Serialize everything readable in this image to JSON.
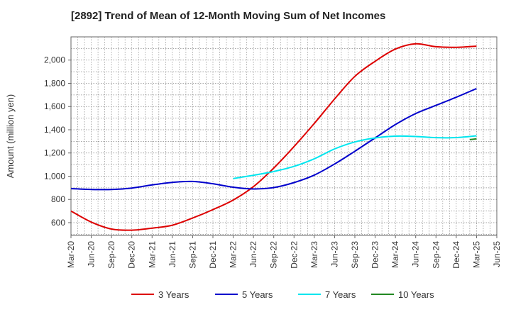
{
  "chart_data": {
    "type": "line",
    "title": "[2892]  Trend of Mean of 12-Month Moving Sum of Net Incomes",
    "ylabel": "Amount (million yen)",
    "xlabel": "",
    "grid": true,
    "legend_position": "bottom",
    "ylim": [
      490,
      2200
    ],
    "yticks": [
      600,
      800,
      1000,
      1200,
      1400,
      1600,
      1800,
      2000
    ],
    "ytick_labels": [
      "600",
      "800",
      "1,000",
      "1,200",
      "1,400",
      "1,600",
      "1,800",
      "2,000"
    ],
    "xticks": [
      "Mar-20",
      "Jun-20",
      "Sep-20",
      "Dec-20",
      "Mar-21",
      "Jun-21",
      "Sep-21",
      "Dec-21",
      "Mar-22",
      "Jun-22",
      "Sep-22",
      "Dec-22",
      "Mar-23",
      "Jun-23",
      "Sep-23",
      "Dec-23",
      "Mar-24",
      "Jun-24",
      "Sep-24",
      "Dec-24",
      "Mar-25",
      "Jun-25"
    ],
    "series": [
      {
        "name": "3 Years",
        "color": "#dd0000",
        "values": [
          [
            "Mar-20",
            700
          ],
          [
            "Jun-20",
            605
          ],
          [
            "Sep-20",
            545
          ],
          [
            "Dec-20",
            535
          ],
          [
            "Mar-21",
            553
          ],
          [
            "Jun-21",
            578
          ],
          [
            "Sep-21",
            640
          ],
          [
            "Dec-21",
            712
          ],
          [
            "Mar-22",
            795
          ],
          [
            "Jun-22",
            910
          ],
          [
            "Sep-22",
            1070
          ],
          [
            "Dec-22",
            1255
          ],
          [
            "Mar-23",
            1455
          ],
          [
            "Jun-23",
            1665
          ],
          [
            "Sep-23",
            1860
          ],
          [
            "Dec-23",
            1990
          ],
          [
            "Mar-24",
            2095
          ],
          [
            "Jun-24",
            2140
          ],
          [
            "Sep-24",
            2115
          ],
          [
            "Dec-24",
            2110
          ],
          [
            "Mar-25",
            2120
          ]
        ]
      },
      {
        "name": "5 Years",
        "color": "#0000cc",
        "values": [
          [
            "Mar-20",
            893
          ],
          [
            "Jun-20",
            886
          ],
          [
            "Sep-20",
            885
          ],
          [
            "Dec-20",
            898
          ],
          [
            "Mar-21",
            925
          ],
          [
            "Jun-21",
            947
          ],
          [
            "Sep-21",
            955
          ],
          [
            "Dec-21",
            935
          ],
          [
            "Mar-22",
            905
          ],
          [
            "Jun-22",
            890
          ],
          [
            "Sep-22",
            902
          ],
          [
            "Dec-22",
            945
          ],
          [
            "Mar-23",
            1010
          ],
          [
            "Jun-23",
            1105
          ],
          [
            "Sep-23",
            1215
          ],
          [
            "Dec-23",
            1330
          ],
          [
            "Mar-24",
            1445
          ],
          [
            "Jun-24",
            1540
          ],
          [
            "Sep-24",
            1610
          ],
          [
            "Dec-24",
            1680
          ],
          [
            "Mar-25",
            1755
          ]
        ]
      },
      {
        "name": "7 Years",
        "color": "#00e5ee",
        "values": [
          [
            "Mar-22",
            980
          ],
          [
            "Jun-22",
            1008
          ],
          [
            "Sep-22",
            1040
          ],
          [
            "Dec-22",
            1085
          ],
          [
            "Mar-23",
            1150
          ],
          [
            "Jun-23",
            1235
          ],
          [
            "Sep-23",
            1295
          ],
          [
            "Dec-23",
            1330
          ],
          [
            "Mar-24",
            1345
          ],
          [
            "Jun-24",
            1342
          ],
          [
            "Sep-24",
            1332
          ],
          [
            "Dec-24",
            1333
          ],
          [
            "Mar-25",
            1348
          ]
        ]
      },
      {
        "name": "10 Years",
        "color": "#228822",
        "values": [
          [
            "Feb-25",
            1315
          ],
          [
            "Mar-25",
            1322
          ]
        ]
      }
    ]
  }
}
